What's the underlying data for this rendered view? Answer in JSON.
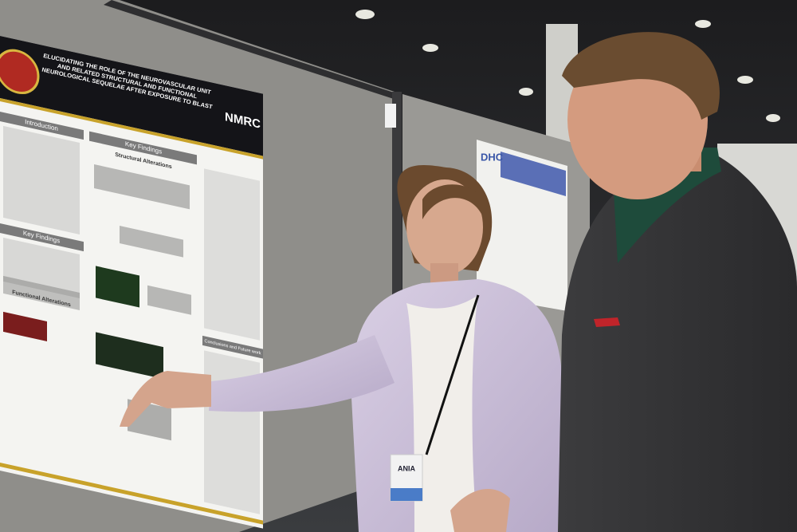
{
  "poster": {
    "title": "ELUCIDATING THE ROLE OF THE NEUROVASCULAR UNIT AND RELATED STRUCTURAL AND FUNCTIONAL NEUROLOGICAL SEQUELAE AFTER EXPOSURE TO BLAST",
    "logo": "NMRC",
    "sections": [
      "Introduction",
      "Key Findings",
      "Key Findings",
      "Structural Alterations",
      "Functional Alterations",
      "Conclusions and Future work"
    ]
  },
  "background_poster": {
    "logo": "DHC"
  },
  "badge": {
    "name": "ANIA"
  }
}
